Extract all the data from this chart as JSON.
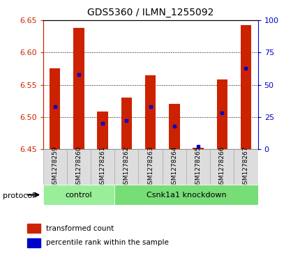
{
  "title": "GDS5360 / ILMN_1255092",
  "samples": [
    "GSM1278259",
    "GSM1278260",
    "GSM1278261",
    "GSM1278262",
    "GSM1278263",
    "GSM1278264",
    "GSM1278265",
    "GSM1278266",
    "GSM1278267"
  ],
  "transformed_count": [
    6.575,
    6.638,
    6.508,
    6.53,
    6.565,
    6.52,
    6.452,
    6.558,
    6.642
  ],
  "percentile_rank": [
    33,
    58,
    20,
    22,
    33,
    18,
    2,
    28,
    63
  ],
  "ylim_left": [
    6.45,
    6.65
  ],
  "ylim_right": [
    0,
    100
  ],
  "yticks_left": [
    6.45,
    6.5,
    6.55,
    6.6,
    6.65
  ],
  "yticks_right": [
    0,
    25,
    50,
    75,
    100
  ],
  "bar_color": "#cc2200",
  "dot_color": "#0000cc",
  "baseline": 6.45,
  "control_group": {
    "start": 0,
    "end": 2,
    "label": "control",
    "color": "#99ee99"
  },
  "knockdown_group": {
    "start": 3,
    "end": 8,
    "label": "Csnk1a1 knockdown",
    "color": "#77dd77"
  },
  "protocol_label": "protocol",
  "left_axis_color": "#cc2200",
  "right_axis_color": "#0000cc"
}
